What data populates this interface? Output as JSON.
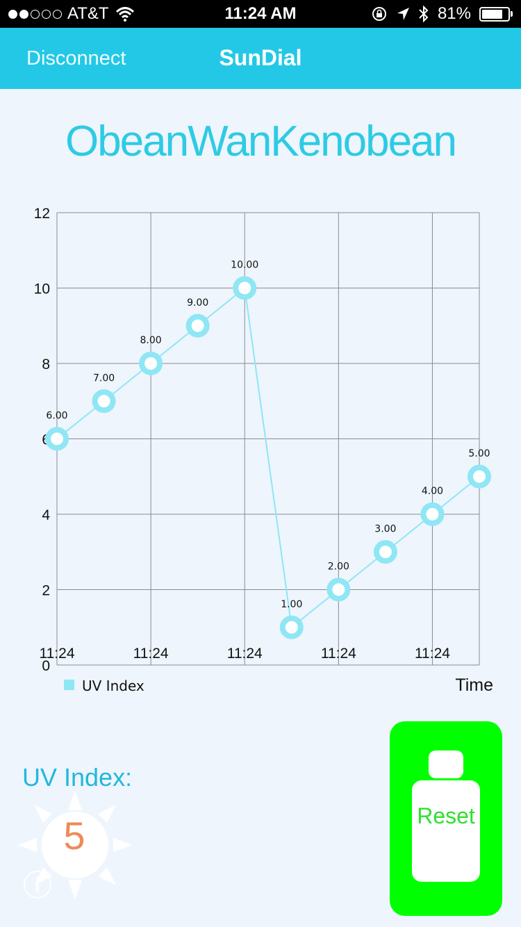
{
  "status_bar": {
    "carrier": "AT&T",
    "time": "11:24 AM",
    "battery_text": "81%",
    "battery_level": 0.81,
    "signal_bars": 2,
    "signal_total": 5
  },
  "nav": {
    "left_button": "Disconnect",
    "title": "SunDial"
  },
  "device_name": "ObeanWanKenobean",
  "chart_data": {
    "type": "line",
    "x": [
      1,
      2,
      3,
      4,
      5,
      6,
      7,
      8,
      9,
      10
    ],
    "x_tick_labels": [
      "11:24",
      "11:24",
      "11:24",
      "11:24",
      "11:24"
    ],
    "x_tick_positions": [
      1,
      3,
      5,
      7,
      9
    ],
    "series": [
      {
        "name": "UV Index",
        "values": [
          6,
          7,
          8,
          9,
          10,
          1,
          2,
          3,
          4,
          5
        ],
        "labels": [
          "6.00",
          "7.00",
          "8.00",
          "9.00",
          "10.00",
          "1.00",
          "2.00",
          "3.00",
          "4.00",
          "5.00"
        ]
      }
    ],
    "ylim": [
      0,
      12
    ],
    "xlim": [
      1,
      10
    ],
    "y_ticks": [
      0,
      2,
      4,
      6,
      8,
      10,
      12
    ],
    "xlabel": "Time",
    "ylabel": "",
    "legend_position": "bottom-left",
    "grid": true,
    "line_color": "#8fe6f4"
  },
  "uv": {
    "label": "UV Index:",
    "value": "5"
  },
  "reset": {
    "label": "Reset",
    "color": "#00ff00"
  }
}
